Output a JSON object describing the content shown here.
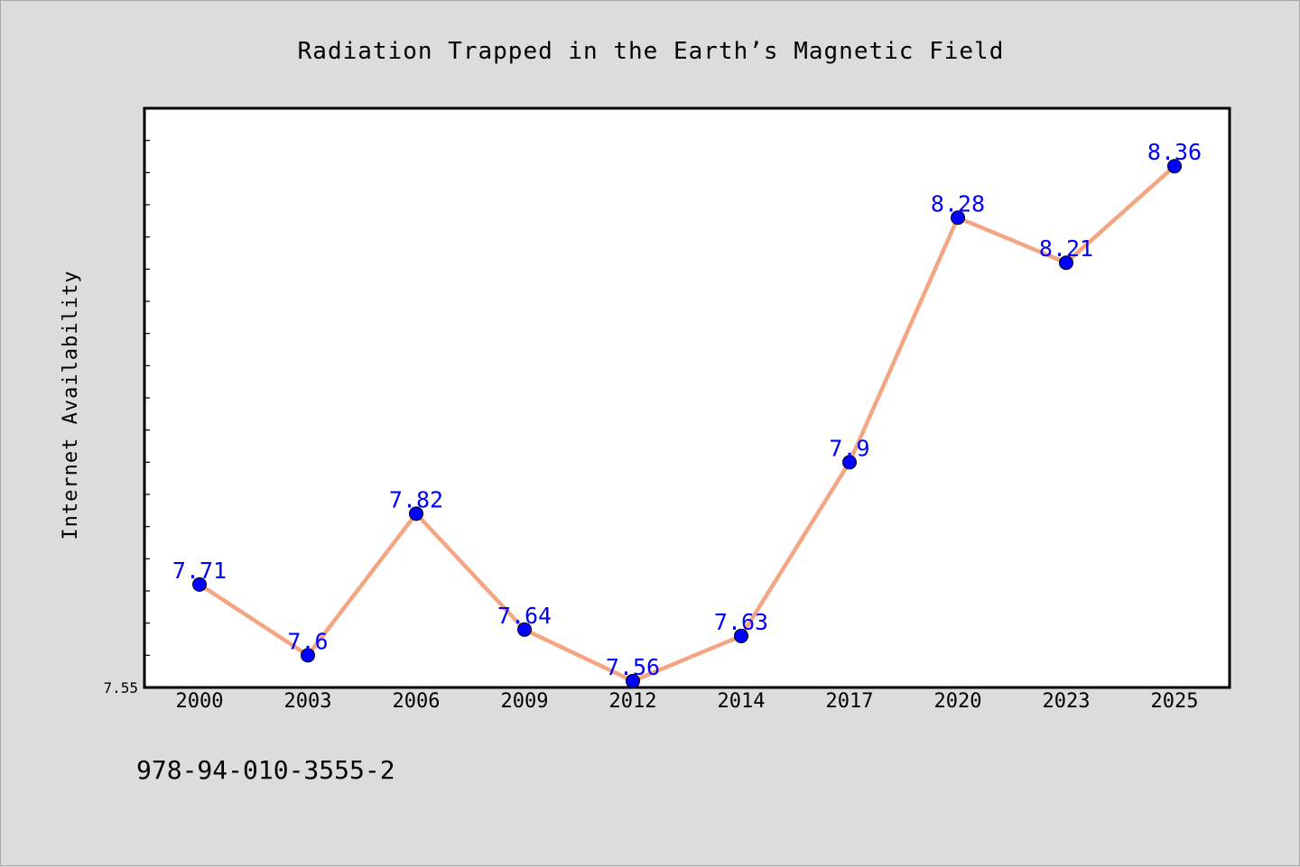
{
  "chart_data": {
    "type": "line",
    "title": "Radiation Trapped in the Earth’s Magnetic Field",
    "xlabel": "",
    "ylabel": "Internet Availability",
    "categories": [
      "2000",
      "2003",
      "2006",
      "2009",
      "2012",
      "2014",
      "2017",
      "2020",
      "2023",
      "2025"
    ],
    "series": [
      {
        "values": [
          7.71,
          7.6,
          7.82,
          7.64,
          7.56,
          7.63,
          7.9,
          8.28,
          8.21,
          8.36
        ],
        "data_labels": [
          "7.71",
          "7.6",
          "7.82",
          "7.64",
          "7.56",
          "7.63",
          "7.9",
          "8.28",
          "8.21",
          "8.36"
        ],
        "line_color": "#f4a582",
        "marker_color": "#0000ff"
      }
    ],
    "ylim": [
      7.55,
      8.45
    ],
    "y_tick_labels": [
      "7.55"
    ],
    "grid": false,
    "legend": "none"
  },
  "footer_text": "978-94-010-3555-2",
  "colors": {
    "background": "#dcdcdc",
    "plot_background": "#ffffff",
    "label_color": "#0000ff"
  }
}
